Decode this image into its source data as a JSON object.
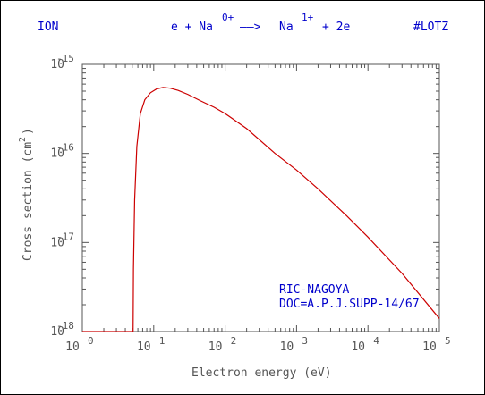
{
  "header": {
    "left": "ION",
    "reaction_lhs": "e + Na",
    "reaction_lhs_charge": "0+",
    "reaction_arrow": "——>",
    "reaction_rhs": "Na",
    "reaction_rhs_charge": "1+",
    "reaction_tail": "+ 2e",
    "right": "#LOTZ"
  },
  "chart_data": {
    "type": "line",
    "xlabel": "Electron energy (eV)",
    "ylabel": "Cross section (cm",
    "ylabel_sup": "2",
    "ylabel_tail": ")",
    "x_scale": "log",
    "y_scale": "log",
    "xlim": [
      1,
      100000
    ],
    "ylim": [
      1e-18,
      1e-15
    ],
    "grid": false,
    "x_ticks": [
      {
        "base": "10",
        "exp": "0"
      },
      {
        "base": "10",
        "exp": "1"
      },
      {
        "base": "10",
        "exp": "2"
      },
      {
        "base": "10",
        "exp": "3"
      },
      {
        "base": "10",
        "exp": "4"
      },
      {
        "base": "10",
        "exp": "5"
      }
    ],
    "y_ticks": [
      {
        "base": "10",
        "exp": "-18"
      },
      {
        "base": "10",
        "exp": "-17"
      },
      {
        "base": "10",
        "exp": "-16"
      },
      {
        "base": "10",
        "exp": "-15"
      }
    ],
    "series": [
      {
        "color": "#cc0000",
        "x": [
          1,
          4.8,
          5.139,
          5.2,
          5.4,
          5.8,
          6.5,
          7.5,
          9,
          11,
          13.5,
          17,
          22,
          30,
          45,
          70,
          100,
          200,
          500,
          1000,
          2000,
          5000,
          10000,
          30000,
          100000
        ],
        "y": [
          1e-18,
          1e-18,
          1e-18,
          5e-18,
          3e-17,
          1.2e-16,
          2.8e-16,
          4e-16,
          4.8e-16,
          5.3e-16,
          5.5e-16,
          5.4e-16,
          5.1e-16,
          4.6e-16,
          3.9e-16,
          3.3e-16,
          2.8e-16,
          1.9e-16,
          1e-16,
          6.5e-17,
          4e-17,
          2e-17,
          1.15e-17,
          4.5e-18,
          1.4e-18
        ]
      }
    ],
    "annotations": [
      "RIC-NAGOYA",
      "DOC=A.P.J.SUPP-14/67"
    ]
  }
}
